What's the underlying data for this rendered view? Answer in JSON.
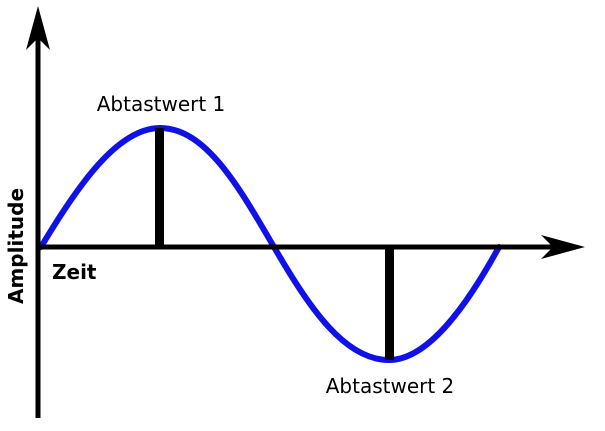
{
  "diagram": {
    "y_axis_label": "Amplitude",
    "x_axis_label": "Zeit",
    "sample_labels": [
      "Abtastwert 1",
      "Abtastwert 2"
    ]
  },
  "colors": {
    "wave": "#1010e8",
    "axes": "#000000",
    "samples": "#000000"
  }
}
